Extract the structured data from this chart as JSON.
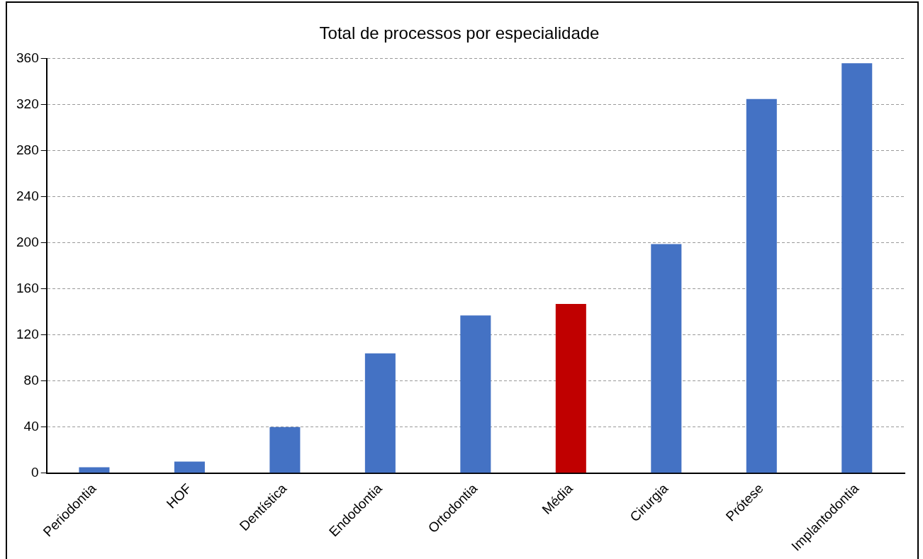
{
  "chart_data": {
    "type": "bar",
    "title": "Total de processos por especialidade",
    "categories": [
      "Periodontia",
      "HOF",
      "Dentística",
      "Endodontia",
      "Ortodontia",
      "Média",
      "Cirurgia",
      "Prótese",
      "Implantodontia"
    ],
    "values": [
      5,
      10,
      40,
      104,
      137,
      147,
      199,
      325,
      356
    ],
    "colors": [
      "#4472c4",
      "#4472c4",
      "#4472c4",
      "#4472c4",
      "#4472c4",
      "#c00000",
      "#4472c4",
      "#4472c4",
      "#4472c4"
    ],
    "ylim": [
      0,
      360
    ],
    "yticks": [
      0,
      40,
      80,
      120,
      160,
      200,
      240,
      280,
      320,
      360
    ],
    "grid": "y",
    "legend": false
  }
}
